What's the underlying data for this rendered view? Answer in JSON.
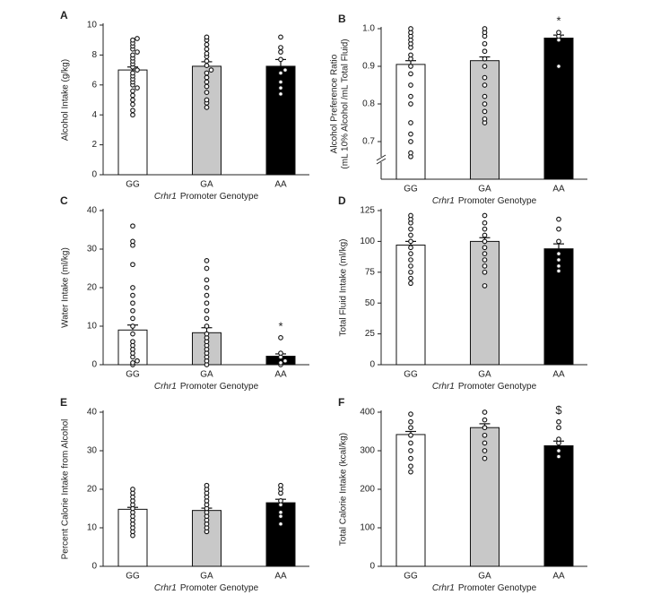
{
  "chart_data": [
    {
      "type": "bar",
      "panel": "A",
      "ylabel": "Alcohol Intake (g/kg)",
      "xlabel_gene": "Crhr1",
      "xlabel": "Promoter Genotype",
      "categories": [
        "GG",
        "GA",
        "AA"
      ],
      "values": [
        7.0,
        7.25,
        7.25
      ],
      "errors": [
        0.2,
        0.3,
        0.45
      ],
      "colors": [
        "#ffffff",
        "#c8c8c8",
        "#000000"
      ],
      "ylim": [
        0,
        10
      ],
      "yticks": [
        0,
        2,
        4,
        6,
        8,
        10
      ],
      "points": [
        [
          4.0,
          4.3,
          4.7,
          5.0,
          5.3,
          5.6,
          5.8,
          6.0,
          6.2,
          6.4,
          6.6,
          6.8,
          7.0,
          7.2,
          7.4,
          7.6,
          7.8,
          8.0,
          8.2,
          8.4,
          8.6,
          8.8,
          9.0,
          9.1
        ],
        [
          4.5,
          4.8,
          5.0,
          5.5,
          5.9,
          6.2,
          6.5,
          6.8,
          7.0,
          7.3,
          7.6,
          7.9,
          8.1,
          8.4,
          8.7,
          9.0,
          9.2
        ],
        [
          5.4,
          5.8,
          6.2,
          6.8,
          7.0,
          7.7,
          8.2,
          8.5,
          9.2
        ]
      ],
      "annotations": []
    },
    {
      "type": "bar",
      "panel": "B",
      "ylabel": "Alcohol Preference Ratio",
      "ylabel2": "(mL 10% Alcohol /mL Total Fluid)",
      "xlabel_gene": "Crhr1",
      "xlabel": "Promoter Genotype",
      "categories": [
        "GG",
        "GA",
        "AA"
      ],
      "values": [
        0.905,
        0.915,
        0.975
      ],
      "errors": [
        0.01,
        0.01,
        0.008
      ],
      "colors": [
        "#ffffff",
        "#c8c8c8",
        "#000000"
      ],
      "ylim": [
        0.6,
        1.0
      ],
      "yticks": [
        0.7,
        0.8,
        0.9,
        {
          "value": 1,
          "label": "1.0"
        }
      ],
      "axis_break": true,
      "points": [
        [
          0.66,
          0.67,
          0.7,
          0.72,
          0.75,
          0.8,
          0.82,
          0.85,
          0.88,
          0.9,
          0.92,
          0.93,
          0.95,
          0.96,
          0.97,
          0.98,
          0.99,
          1.0
        ],
        [
          0.75,
          0.76,
          0.78,
          0.8,
          0.82,
          0.85,
          0.87,
          0.9,
          0.92,
          0.94,
          0.96,
          0.98,
          0.99,
          1.0
        ],
        [
          0.9,
          0.97,
          0.98,
          0.99
        ]
      ],
      "annotations": [
        {
          "category": "AA",
          "text": "*"
        }
      ]
    },
    {
      "type": "bar",
      "panel": "C",
      "ylabel": "Water Intake (ml/kg)",
      "xlabel_gene": "Crhr1",
      "xlabel": "Promoter Genotype",
      "categories": [
        "GG",
        "GA",
        "AA"
      ],
      "values": [
        9,
        8.3,
        2.2
      ],
      "errors": [
        1.3,
        1.3,
        0.6
      ],
      "colors": [
        "#ffffff",
        "#c8c8c8",
        "#000000"
      ],
      "ylim": [
        0,
        40
      ],
      "yticks": [
        0,
        10,
        20,
        30,
        40
      ],
      "points": [
        [
          0,
          0.5,
          1,
          2,
          3,
          4,
          5,
          6,
          8,
          10,
          12,
          14,
          16,
          18,
          20,
          26,
          31,
          32,
          36
        ],
        [
          0,
          1,
          2,
          3,
          4,
          5,
          6,
          7,
          8,
          10,
          12,
          14,
          16,
          18,
          20,
          22,
          25,
          27
        ],
        [
          0,
          0.5,
          1,
          2,
          3,
          7
        ]
      ],
      "annotations": [
        {
          "category": "AA",
          "text": "*"
        }
      ]
    },
    {
      "type": "bar",
      "panel": "D",
      "ylabel": "Total Fluid Intake (ml/kg)",
      "xlabel_gene": "Crhr1",
      "xlabel": "Promoter Genotype",
      "categories": [
        "GG",
        "GA",
        "AA"
      ],
      "values": [
        97,
        100,
        94
      ],
      "errors": [
        3,
        3,
        4
      ],
      "colors": [
        "#ffffff",
        "#c8c8c8",
        "#000000"
      ],
      "ylim": [
        0,
        125
      ],
      "yticks": [
        0,
        25,
        50,
        75,
        100,
        125
      ],
      "points": [
        [
          66,
          70,
          75,
          80,
          85,
          90,
          95,
          100,
          105,
          110,
          115,
          118,
          121
        ],
        [
          64,
          75,
          80,
          85,
          90,
          95,
          100,
          105,
          110,
          115,
          121
        ],
        [
          76,
          80,
          85,
          90,
          100,
          110,
          118
        ]
      ],
      "annotations": []
    },
    {
      "type": "bar",
      "panel": "E",
      "ylabel": "Percent Calorie Intake from Alcohol",
      "xlabel_gene": "Crhr1",
      "xlabel": "Promoter Genotype",
      "categories": [
        "GG",
        "GA",
        "AA"
      ],
      "values": [
        14.8,
        14.5,
        16.5
      ],
      "errors": [
        0.5,
        0.6,
        0.9
      ],
      "colors": [
        "#ffffff",
        "#c8c8c8",
        "#000000"
      ],
      "ylim": [
        0,
        40
      ],
      "yticks": [
        0,
        10,
        20,
        30,
        40
      ],
      "points": [
        [
          8,
          9,
          10,
          11,
          12,
          13,
          14,
          15,
          16,
          17,
          18,
          19,
          20
        ],
        [
          9,
          10,
          11,
          12,
          13,
          14,
          15,
          16,
          17,
          18,
          19,
          20,
          21
        ],
        [
          11,
          13,
          14,
          16,
          17,
          19,
          20,
          21
        ]
      ],
      "annotations": []
    },
    {
      "type": "bar",
      "panel": "F",
      "ylabel": "Total Calorie Intake (kcal/kg)",
      "xlabel_gene": "Crhr1",
      "xlabel": "Promoter Genotype",
      "categories": [
        "GG",
        "GA",
        "AA"
      ],
      "values": [
        342,
        360,
        313
      ],
      "errors": [
        8,
        10,
        12
      ],
      "colors": [
        "#ffffff",
        "#c8c8c8",
        "#000000"
      ],
      "ylim": [
        0,
        400
      ],
      "yticks": [
        0,
        100,
        200,
        300,
        400
      ],
      "points": [
        [
          245,
          260,
          280,
          300,
          320,
          340,
          360,
          375,
          395
        ],
        [
          280,
          300,
          320,
          340,
          360,
          380,
          400
        ],
        [
          285,
          300,
          320,
          330,
          360,
          375
        ]
      ],
      "annotations": [
        {
          "category": "AA",
          "text": "$"
        }
      ]
    }
  ]
}
